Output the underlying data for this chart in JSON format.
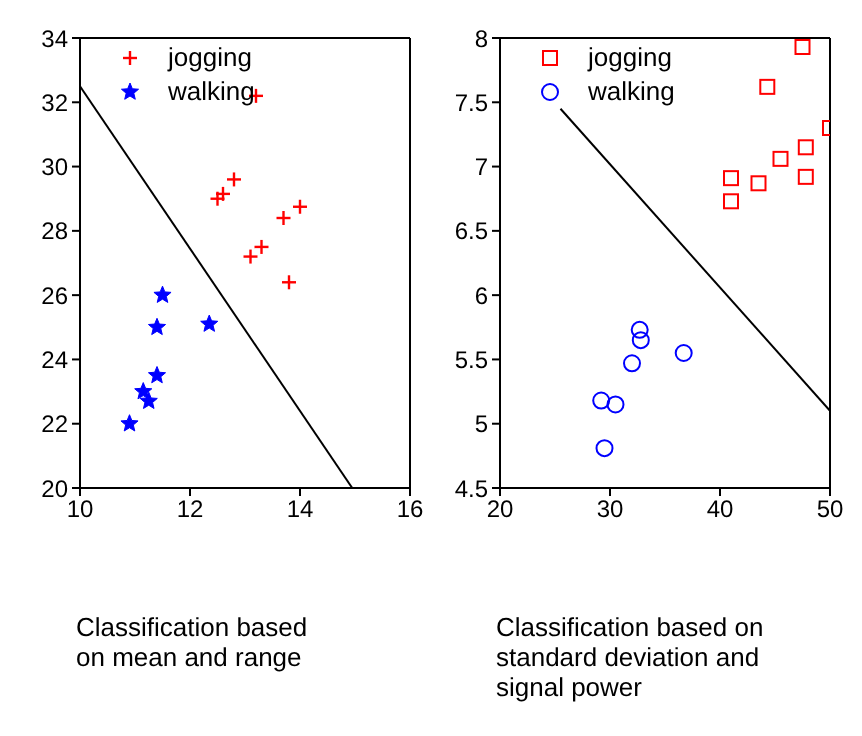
{
  "chart_data": [
    {
      "type": "scatter",
      "xlabel": "Classification based\non mean and range",
      "xlim": [
        10,
        16
      ],
      "ylim": [
        20,
        34
      ],
      "xticks": [
        10,
        12,
        14,
        16
      ],
      "yticks": [
        20,
        22,
        24,
        26,
        28,
        30,
        32,
        34
      ],
      "grid": false,
      "legend": "top left",
      "series": [
        {
          "name": "jogging",
          "color": "#ff0000",
          "marker": "cross",
          "x": [
            13.2,
            12.8,
            12.6,
            12.5,
            14.0,
            13.7,
            13.3,
            13.1,
            13.8
          ],
          "values": [
            32.2,
            29.6,
            29.15,
            29.0,
            28.75,
            28.4,
            27.5,
            27.2,
            26.4
          ]
        },
        {
          "name": "walking",
          "color": "#0000ff",
          "marker": "star",
          "x": [
            11.5,
            11.4,
            12.35,
            11.4,
            11.15,
            11.25,
            10.9
          ],
          "values": [
            26.0,
            25.0,
            25.1,
            23.5,
            23.0,
            22.7,
            22.0
          ]
        },
        {
          "type": "line",
          "color": "#000000",
          "marker": "none",
          "x": [
            10,
            14.95
          ],
          "values": [
            32.5,
            20
          ]
        }
      ]
    },
    {
      "type": "scatter",
      "xlabel": "Classification based on\nstandard deviation and\nsignal power",
      "xlim": [
        20,
        50
      ],
      "ylim": [
        4.5,
        8
      ],
      "xticks": [
        20,
        30,
        40,
        50
      ],
      "yticks": [
        4.5,
        5,
        5.5,
        6,
        6.5,
        7,
        7.5,
        8
      ],
      "grid": false,
      "legend": "top left",
      "series": [
        {
          "name": "jogging",
          "color": "#ff0000",
          "marker": "square",
          "x": [
            47.5,
            44.3,
            50,
            47.8,
            45.5,
            41,
            43.5,
            47.8,
            41
          ],
          "values": [
            7.93,
            7.62,
            7.3,
            7.15,
            7.06,
            6.91,
            6.87,
            6.92,
            6.73
          ]
        },
        {
          "name": "walking",
          "color": "#0000ff",
          "marker": "circle",
          "x": [
            32.7,
            32.8,
            36.7,
            32,
            29.2,
            30.5,
            29.5
          ],
          "values": [
            5.73,
            5.65,
            5.55,
            5.47,
            5.18,
            5.15,
            4.81
          ]
        },
        {
          "type": "line",
          "color": "#000000",
          "marker": "none",
          "x": [
            25.5,
            50
          ],
          "values": [
            7.45,
            5.1
          ]
        }
      ]
    }
  ]
}
